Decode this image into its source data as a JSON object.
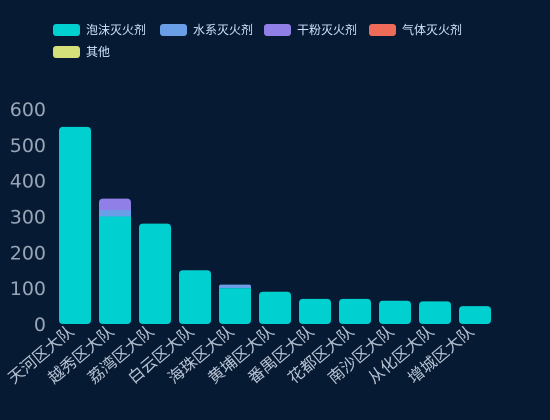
{
  "chart_data": {
    "type": "bar",
    "stacked": true,
    "categories": [
      "天河区大队",
      "越秀区大队",
      "荔湾区大队",
      "白云区大队",
      "海珠区大队",
      "黄埔区大队",
      "番禺区大队",
      "花都区大队",
      "南沙区大队",
      "从化区大队",
      "增城区大队"
    ],
    "series": [
      {
        "name": "泡沫灭火剂",
        "color": "#00d0d0",
        "values": [
          550,
          300,
          280,
          150,
          100,
          90,
          70,
          70,
          65,
          63,
          50
        ]
      },
      {
        "name": "水系灭火剂",
        "color": "#6a9ee6",
        "values": [
          0,
          18,
          0,
          0,
          10,
          0,
          0,
          0,
          0,
          0,
          0
        ]
      },
      {
        "name": "干粉灭火剂",
        "color": "#8f7fe6",
        "values": [
          0,
          32,
          0,
          0,
          0,
          0,
          0,
          0,
          0,
          0,
          0
        ]
      },
      {
        "name": "气体灭火剂",
        "color": "#ee6b5a",
        "values": [
          0,
          0,
          0,
          0,
          0,
          0,
          0,
          0,
          0,
          0,
          0
        ]
      },
      {
        "name": "其他",
        "color": "#d5e07a",
        "values": [
          0,
          0,
          0,
          0,
          0,
          0,
          0,
          0,
          0,
          0,
          0
        ]
      }
    ],
    "yticks": [
      0,
      100,
      200,
      300,
      400,
      500,
      600
    ],
    "ylim": [
      0,
      600
    ],
    "grid": false,
    "legend_position": "top-left"
  }
}
